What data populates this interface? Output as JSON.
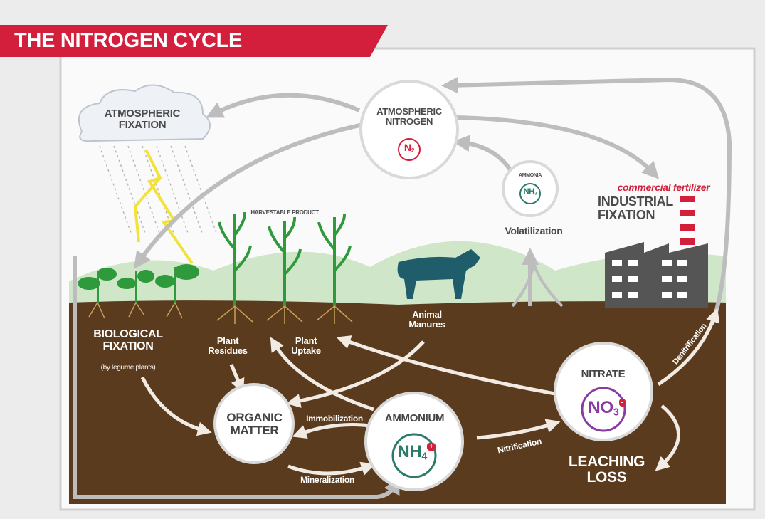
{
  "header": {
    "title": "THE NITROGEN CYCLE"
  },
  "labels": {
    "atmospheric_fixation": "ATMOSPHERIC FIXATION",
    "atmospheric_nitrogen": "ATMOSPHERIC NITROGEN",
    "n2": {
      "base": "N",
      "sub": "2"
    },
    "ammonia": "AMMONIA",
    "nh3": {
      "base": "NH",
      "sub": "3"
    },
    "volatilization": "Volatilization",
    "commercial_fertilizer": "commercial fertilizer",
    "industrial_fixation": "INDUSTRIAL FIXATION",
    "harvestable_product": "HARVESTABLE PRODUCT",
    "biological_fixation": "BIOLOGICAL FIXATION",
    "legume_note": "(by legume plants)",
    "plant_residues": "Plant Residues",
    "plant_uptake": "Plant Uptake",
    "animal_manures": "Animal Manures",
    "organic_matter": "ORGANIC MATTER",
    "immobilization": "Immobilization",
    "mineralization": "Mineralization",
    "ammonium": "AMMONIUM",
    "nh4": {
      "base": "NH",
      "sub": "4",
      "charge": "+"
    },
    "nitrification": "Nitrification",
    "nitrate": "NITRATE",
    "no3": {
      "base": "NO",
      "sub": "3",
      "charge": "-"
    },
    "denitrification": "Denitrification",
    "leaching_loss": "LEACHING LOSS"
  }
}
